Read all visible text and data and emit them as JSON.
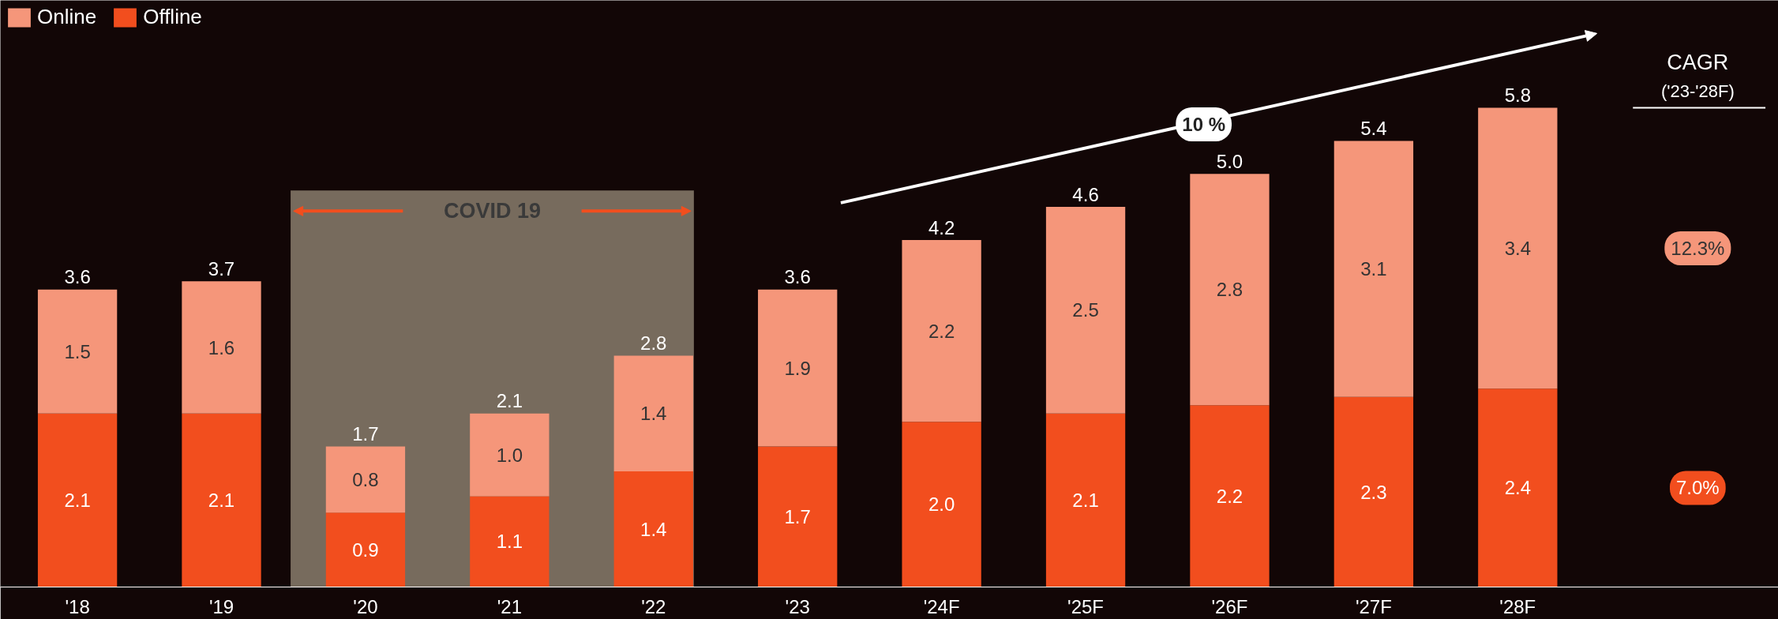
{
  "chart_data": {
    "type": "bar",
    "stacked": true,
    "legend": "top left",
    "tick_labels": "x",
    "grid": false,
    "categories": [
      "'18",
      "'19",
      "'20",
      "'21",
      "'22",
      "'23",
      "'24F",
      "'25F",
      "'26F",
      "'27F",
      "'28F"
    ],
    "series": [
      {
        "name": "Offline",
        "color": "#f24e1e",
        "values": [
          2.1,
          2.1,
          0.9,
          1.1,
          1.4,
          1.7,
          2.0,
          2.1,
          2.2,
          2.3,
          2.4
        ],
        "value_labels": [
          "2.1",
          "2.1",
          "0.9",
          "1.1",
          "1.4",
          "1.7",
          "2.0",
          "2.1",
          "2.2",
          "2.3",
          "2.4"
        ]
      },
      {
        "name": "Online",
        "color": "#f5967a",
        "values": [
          1.5,
          1.6,
          0.8,
          1.0,
          1.4,
          1.9,
          2.2,
          2.5,
          2.8,
          3.1,
          3.4
        ],
        "value_labels": [
          "1.5",
          "1.6",
          "0.8",
          "1.0",
          "1.4",
          "1.9",
          "2.2",
          "2.5",
          "2.8",
          "3.1",
          "3.4"
        ]
      }
    ],
    "totals": [
      "3.6",
      "3.7",
      "1.7",
      "2.1",
      "2.8",
      "3.6",
      "4.2",
      "4.6",
      "5.0",
      "5.4",
      "5.8"
    ],
    "ylim": [
      0,
      7.1
    ],
    "bands": [
      {
        "axis": "x",
        "from": "'20",
        "to": "'22",
        "label": "COVID 19",
        "color": "#f3e6c8"
      }
    ],
    "annotations": [
      "10 %",
      "CAGR",
      "('23-'28F)",
      "12.3%",
      "7.0%"
    ]
  }
}
